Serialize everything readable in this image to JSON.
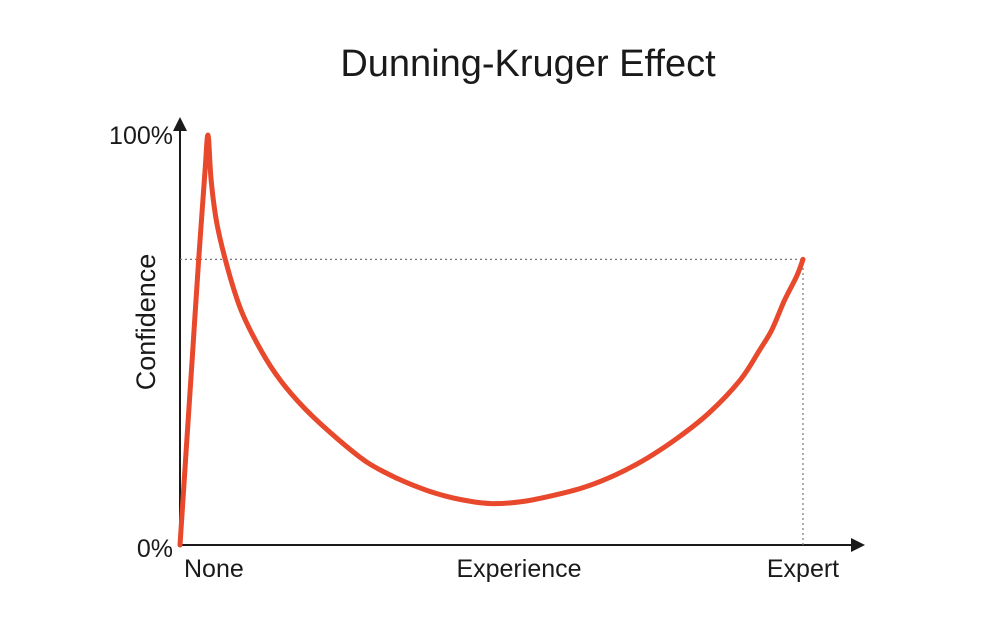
{
  "chart_data": {
    "type": "line",
    "title": "Dunning-Kruger Effect",
    "xlabel": "Experience",
    "ylabel": "Confidence",
    "x_tick_labels": [
      "None",
      "Experience",
      "Expert"
    ],
    "y_tick_labels": [
      "0%",
      "100%"
    ],
    "xlim": [
      0,
      100
    ],
    "ylim": [
      0,
      100
    ],
    "grid": false,
    "legend": "none",
    "series": [
      {
        "color": "#e8482b",
        "x": [
          0,
          1,
          2,
          3,
          4,
          4.5,
          5,
          6,
          8,
          10,
          13,
          16,
          20,
          25,
          30,
          35,
          40,
          45,
          50,
          55,
          60,
          65,
          70,
          75,
          80,
          85,
          90,
          93,
          95,
          97,
          99,
          100
        ],
        "y": [
          0,
          23,
          46,
          69,
          90,
          99,
          88,
          77,
          65,
          56,
          47,
          40,
          33,
          26,
          20,
          16,
          13,
          11,
          10,
          10.5,
          12,
          14,
          17,
          21,
          26,
          32,
          40,
          47,
          52,
          59,
          65,
          69
        ]
      }
    ],
    "reference_lines": [
      {
        "orientation": "horizontal",
        "y": 69,
        "from_x": 0,
        "to_x": 100,
        "style": "dotted"
      },
      {
        "orientation": "vertical",
        "x": 100,
        "from_y": 0,
        "to_y": 69,
        "style": "dotted"
      }
    ]
  }
}
